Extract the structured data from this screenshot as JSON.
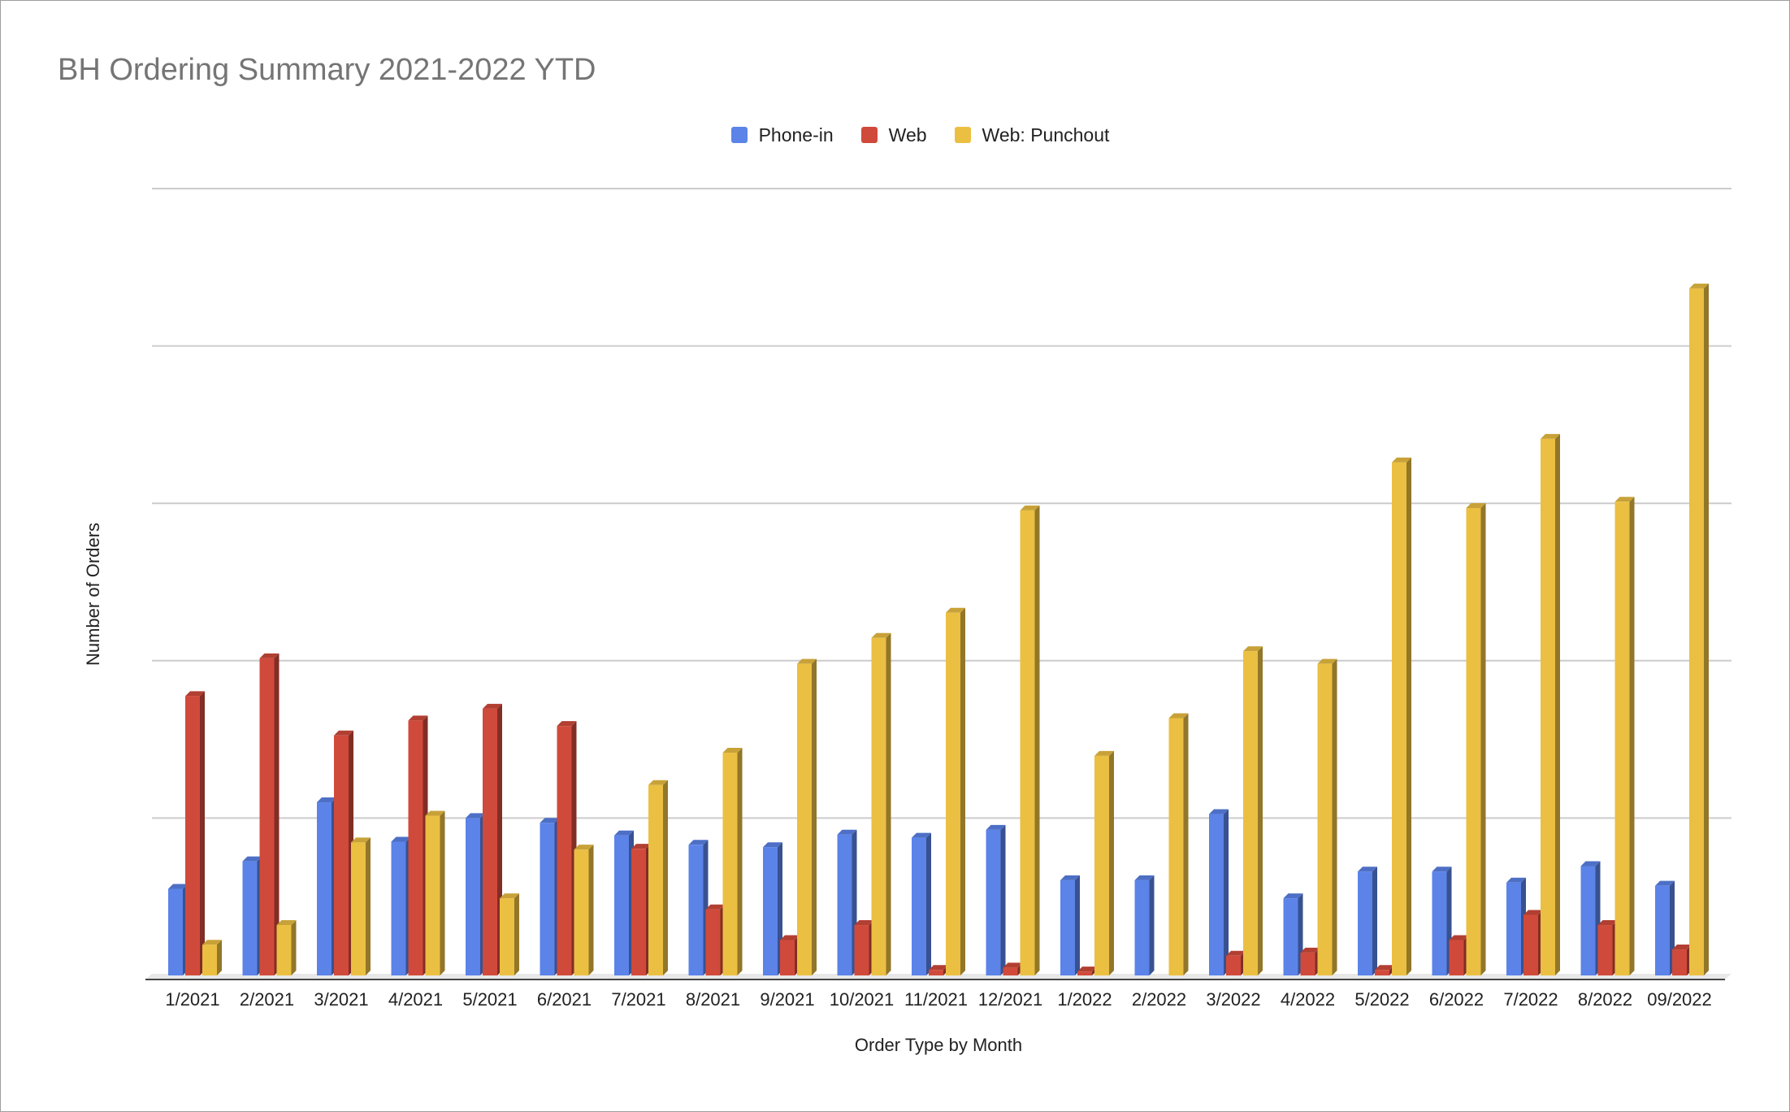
{
  "chart_data": {
    "type": "bar",
    "title": "BH Ordering Summary 2021-2022 YTD",
    "xlabel": "Order Type by Month",
    "ylabel": "Number of Orders",
    "categories": [
      "1/2021",
      "2/2021",
      "3/2021",
      "4/2021",
      "5/2021",
      "6/2021",
      "7/2021",
      "8/2021",
      "9/2021",
      "10/2021",
      "11/2021",
      "12/2021",
      "1/2022",
      "2/2022",
      "3/2022",
      "4/2022",
      "5/2022",
      "6/2022",
      "7/2022",
      "8/2022",
      "09/2022"
    ],
    "series": [
      {
        "name": "Phone-in",
        "color": "#5b83e8",
        "values": [
          1.1,
          1.45,
          2.2,
          1.7,
          2.0,
          1.94,
          1.78,
          1.66,
          1.63,
          1.79,
          1.75,
          1.85,
          1.21,
          1.21,
          2.05,
          0.98,
          1.32,
          1.32,
          1.18,
          1.39,
          1.14
        ]
      },
      {
        "name": "Web",
        "color": "#d04a3b",
        "values": [
          3.55,
          4.03,
          3.05,
          3.24,
          3.39,
          3.17,
          1.61,
          0.84,
          0.45,
          0.64,
          0.07,
          0.1,
          0.05,
          0.0,
          0.25,
          0.29,
          0.07,
          0.45,
          0.77,
          0.64,
          0.33
        ]
      },
      {
        "name": "Web: Punchout",
        "color": "#ebbf42",
        "values": [
          0.39,
          0.64,
          1.69,
          2.03,
          0.98,
          1.6,
          2.42,
          2.83,
          3.96,
          4.29,
          4.61,
          5.91,
          2.79,
          3.27,
          4.12,
          3.96,
          6.52,
          5.94,
          6.82,
          6.02,
          8.73
        ]
      }
    ],
    "ylim": [
      0,
      10
    ],
    "grid": true,
    "legend_position": "top"
  }
}
